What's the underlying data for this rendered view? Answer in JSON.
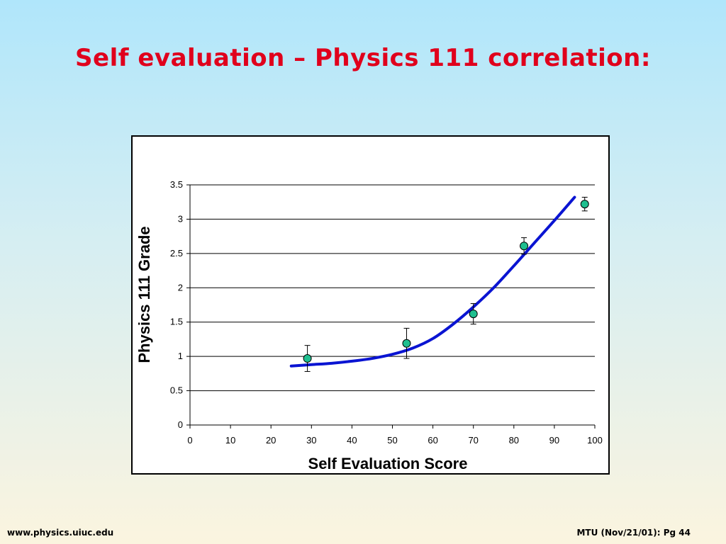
{
  "slide": {
    "title": "Self evaluation – Physics 111 correlation:",
    "footer_left": "www.physics.uiuc.edu",
    "footer_right": "MTU (Nov/21/01): Pg 44"
  },
  "colors": {
    "title": "#e0001c",
    "curve": "#0a14d2",
    "marker_fill": "#1fbf8f",
    "grid": "#000000"
  },
  "chart_data": {
    "type": "scatter",
    "title": "",
    "xlabel": "Self Evaluation Score",
    "ylabel": "Physics 111 Grade",
    "xlim": [
      0,
      100
    ],
    "ylim": [
      0,
      3.5
    ],
    "x_ticks": [
      "0",
      "10",
      "20",
      "30",
      "40",
      "50",
      "60",
      "70",
      "80",
      "90",
      "100"
    ],
    "y_ticks": [
      "0",
      "0.5",
      "1",
      "1.5",
      "2",
      "2.5",
      "3",
      "3.5"
    ],
    "grid": "horizontal",
    "points": [
      {
        "x": 29,
        "y": 0.97,
        "err": 0.19
      },
      {
        "x": 53.5,
        "y": 1.19,
        "err": 0.22
      },
      {
        "x": 70,
        "y": 1.62,
        "err": 0.15
      },
      {
        "x": 82.5,
        "y": 2.61,
        "err": 0.12
      },
      {
        "x": 97.5,
        "y": 3.22,
        "err": 0.1
      }
    ],
    "fit_curve": {
      "x": [
        25,
        30,
        35,
        40,
        45,
        50,
        55,
        60,
        65,
        70,
        75,
        80,
        85,
        90,
        95
      ],
      "y": [
        0.86,
        0.88,
        0.9,
        0.93,
        0.97,
        1.03,
        1.12,
        1.26,
        1.47,
        1.72,
        2.0,
        2.32,
        2.65,
        2.98,
        3.32
      ]
    }
  }
}
